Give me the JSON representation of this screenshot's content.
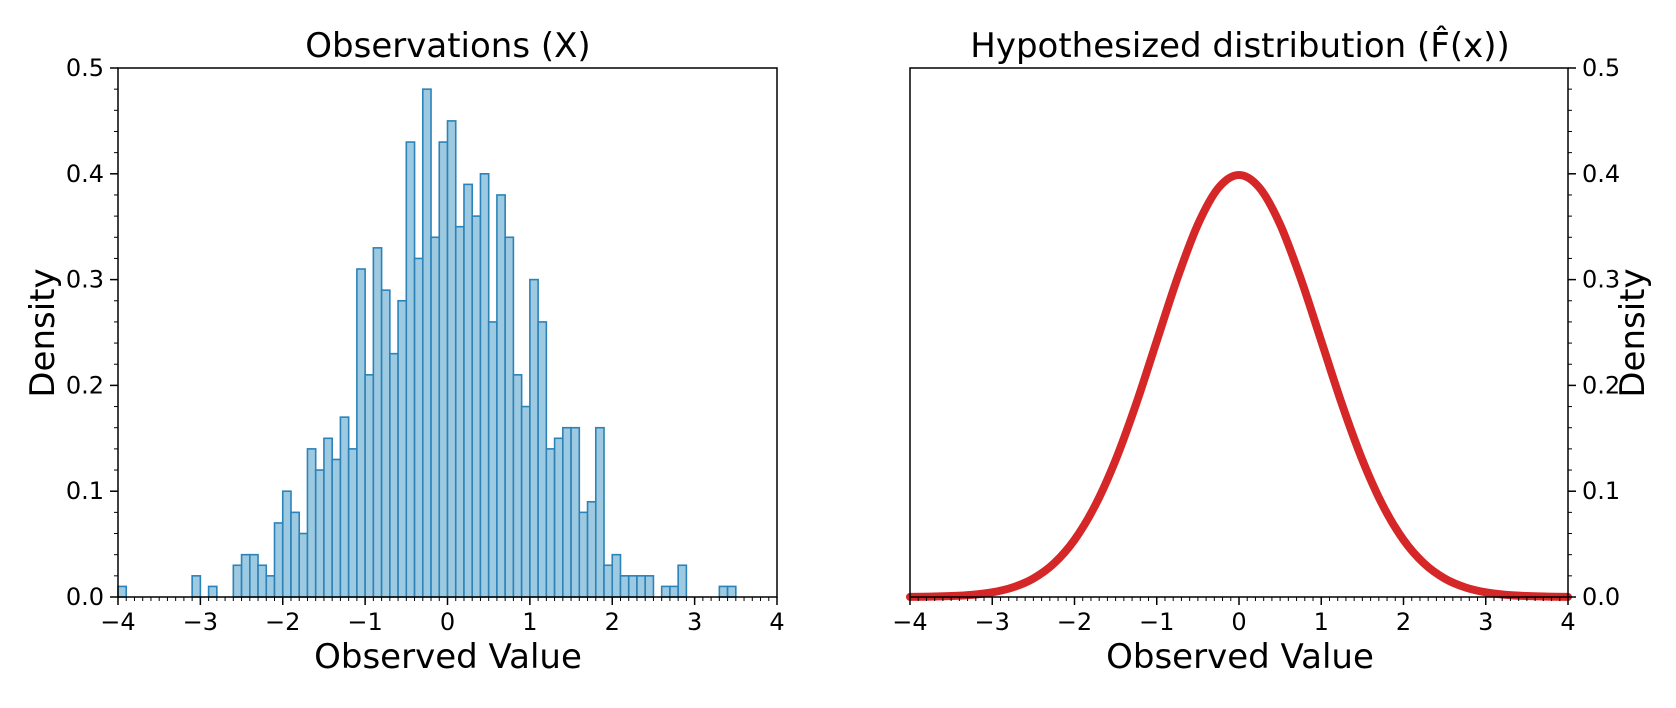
{
  "chart_data": [
    {
      "type": "bar",
      "title": "Observations (X)",
      "xlabel": "Observed Value",
      "ylabel": "Density",
      "xlim": [
        -4,
        4
      ],
      "ylim": [
        0,
        0.5
      ],
      "xticks": [
        "−4",
        "−3",
        "−2",
        "−1",
        "0",
        "1",
        "2",
        "3",
        "4"
      ],
      "yticks": [
        "0.0",
        "0.1",
        "0.2",
        "0.3",
        "0.4",
        "0.5"
      ],
      "ytick_side": "left",
      "grid": false,
      "bin_width": 0.1,
      "bins": [
        {
          "x": -3.95,
          "y": 0.01
        },
        {
          "x": -3.05,
          "y": 0.02
        },
        {
          "x": -2.85,
          "y": 0.01
        },
        {
          "x": -2.55,
          "y": 0.03
        },
        {
          "x": -2.45,
          "y": 0.04
        },
        {
          "x": -2.35,
          "y": 0.04
        },
        {
          "x": -2.25,
          "y": 0.03
        },
        {
          "x": -2.15,
          "y": 0.02
        },
        {
          "x": -2.05,
          "y": 0.07
        },
        {
          "x": -1.95,
          "y": 0.1
        },
        {
          "x": -1.85,
          "y": 0.08
        },
        {
          "x": -1.75,
          "y": 0.06
        },
        {
          "x": -1.65,
          "y": 0.14
        },
        {
          "x": -1.55,
          "y": 0.12
        },
        {
          "x": -1.45,
          "y": 0.15
        },
        {
          "x": -1.35,
          "y": 0.13
        },
        {
          "x": -1.25,
          "y": 0.17
        },
        {
          "x": -1.15,
          "y": 0.14
        },
        {
          "x": -1.05,
          "y": 0.31
        },
        {
          "x": -0.95,
          "y": 0.21
        },
        {
          "x": -0.85,
          "y": 0.33
        },
        {
          "x": -0.75,
          "y": 0.29
        },
        {
          "x": -0.65,
          "y": 0.23
        },
        {
          "x": -0.55,
          "y": 0.28
        },
        {
          "x": -0.45,
          "y": 0.43
        },
        {
          "x": -0.35,
          "y": 0.32
        },
        {
          "x": -0.25,
          "y": 0.48
        },
        {
          "x": -0.15,
          "y": 0.34
        },
        {
          "x": -0.05,
          "y": 0.43
        },
        {
          "x": 0.05,
          "y": 0.45
        },
        {
          "x": 0.15,
          "y": 0.35
        },
        {
          "x": 0.25,
          "y": 0.39
        },
        {
          "x": 0.35,
          "y": 0.36
        },
        {
          "x": 0.45,
          "y": 0.4
        },
        {
          "x": 0.55,
          "y": 0.26
        },
        {
          "x": 0.65,
          "y": 0.38
        },
        {
          "x": 0.75,
          "y": 0.34
        },
        {
          "x": 0.85,
          "y": 0.21
        },
        {
          "x": 0.95,
          "y": 0.18
        },
        {
          "x": 1.05,
          "y": 0.3
        },
        {
          "x": 1.15,
          "y": 0.26
        },
        {
          "x": 1.25,
          "y": 0.14
        },
        {
          "x": 1.35,
          "y": 0.15
        },
        {
          "x": 1.45,
          "y": 0.16
        },
        {
          "x": 1.55,
          "y": 0.16
        },
        {
          "x": 1.65,
          "y": 0.08
        },
        {
          "x": 1.75,
          "y": 0.09
        },
        {
          "x": 1.85,
          "y": 0.16
        },
        {
          "x": 1.95,
          "y": 0.03
        },
        {
          "x": 2.05,
          "y": 0.04
        },
        {
          "x": 2.15,
          "y": 0.02
        },
        {
          "x": 2.25,
          "y": 0.02
        },
        {
          "x": 2.35,
          "y": 0.02
        },
        {
          "x": 2.45,
          "y": 0.02
        },
        {
          "x": 2.65,
          "y": 0.01
        },
        {
          "x": 2.75,
          "y": 0.01
        },
        {
          "x": 2.85,
          "y": 0.03
        },
        {
          "x": 3.35,
          "y": 0.01
        },
        {
          "x": 3.45,
          "y": 0.01
        }
      ],
      "colors": {
        "fill": "#9ecae1",
        "edge": "#2b83ba"
      }
    },
    {
      "type": "line",
      "title": "Hypothesized distribution (F̂(x))",
      "xlabel": "Observed Value",
      "ylabel": "Density",
      "xlim": [
        -4,
        4
      ],
      "ylim": [
        0,
        0.5
      ],
      "xticks": [
        "−4",
        "−3",
        "−2",
        "−1",
        "0",
        "1",
        "2",
        "3",
        "4"
      ],
      "yticks": [
        "0.0",
        "0.1",
        "0.2",
        "0.3",
        "0.4",
        "0.5"
      ],
      "ytick_side": "right",
      "grid": false,
      "series": [
        {
          "x": [
            -4,
            -3.75,
            -3.5,
            -3.25,
            -3,
            -2.75,
            -2.5,
            -2.25,
            -2,
            -1.75,
            -1.5,
            -1.25,
            -1,
            -0.75,
            -0.5,
            -0.25,
            0,
            0.25,
            0.5,
            0.75,
            1,
            1.25,
            1.5,
            1.75,
            2,
            2.25,
            2.5,
            2.75,
            3,
            3.25,
            3.5,
            3.75,
            4
          ],
          "y": [
            0.0001,
            0.0004,
            0.0009,
            0.002,
            0.0044,
            0.0091,
            0.0175,
            0.0317,
            0.054,
            0.0863,
            0.1295,
            0.1826,
            0.242,
            0.3011,
            0.3521,
            0.3867,
            0.3989,
            0.3867,
            0.3521,
            0.3011,
            0.242,
            0.1826,
            0.1295,
            0.0863,
            0.054,
            0.0317,
            0.0175,
            0.0091,
            0.0044,
            0.002,
            0.0009,
            0.0004,
            0.0001
          ]
        }
      ],
      "colors": {
        "line": "#d62728"
      }
    }
  ]
}
